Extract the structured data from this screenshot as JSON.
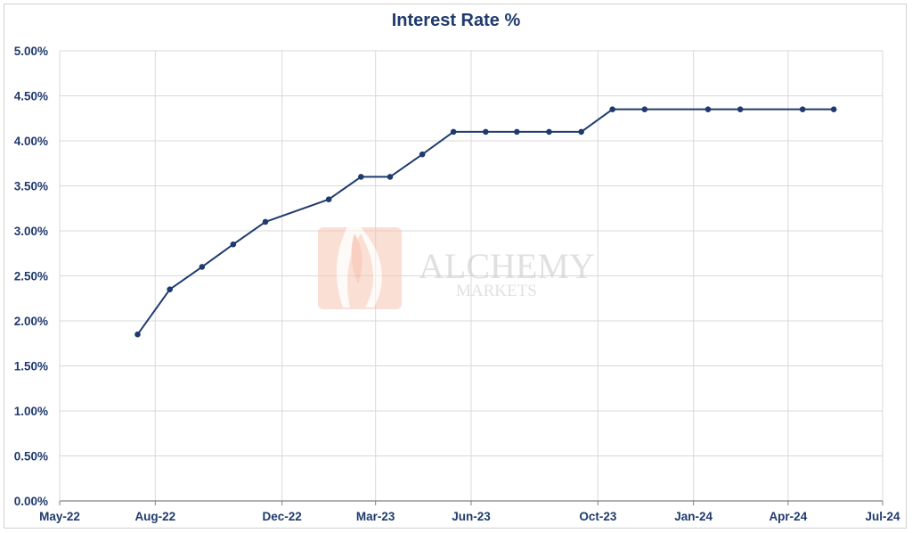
{
  "chart_data": {
    "type": "line",
    "title": "Interest Rate %",
    "xlabel": "",
    "ylabel": "",
    "x_tick_labels": [
      "May-22",
      "Aug-22",
      "Dec-22",
      "Mar-23",
      "Jun-23",
      "Oct-23",
      "Jan-24",
      "Apr-24",
      "Jul-24"
    ],
    "x_tick_dates": [
      "2022-05-01",
      "2022-08-01",
      "2022-12-01",
      "2023-03-01",
      "2023-06-01",
      "2023-10-01",
      "2024-01-01",
      "2024-04-01",
      "2024-07-01"
    ],
    "y_tick_labels": [
      "0.00%",
      "0.50%",
      "1.00%",
      "1.50%",
      "2.00%",
      "2.50%",
      "3.00%",
      "3.50%",
      "4.00%",
      "4.50%",
      "5.00%"
    ],
    "ylim": [
      0,
      5
    ],
    "xlim": [
      "2022-05-01",
      "2024-07-01"
    ],
    "grid": true,
    "color": "#1f3a6e",
    "series": [
      {
        "x": [
          "2022-07-15",
          "2022-08-15",
          "2022-09-15",
          "2022-10-15",
          "2022-11-15",
          "2023-01-15",
          "2023-02-15",
          "2023-03-15",
          "2023-04-15",
          "2023-05-15",
          "2023-06-15",
          "2023-07-15",
          "2023-08-15",
          "2023-09-15",
          "2023-10-15",
          "2023-11-15",
          "2024-01-15",
          "2024-02-15",
          "2024-04-15",
          "2024-05-15"
        ],
        "values": [
          1.85,
          2.35,
          2.6,
          2.85,
          3.1,
          3.35,
          3.6,
          3.6,
          3.85,
          4.1,
          4.1,
          4.1,
          4.1,
          4.1,
          4.35,
          4.35,
          4.35,
          4.35,
          4.35,
          4.35
        ]
      }
    ]
  },
  "watermark": {
    "brand": "ALCHEMY",
    "sub": "MARKETS"
  }
}
